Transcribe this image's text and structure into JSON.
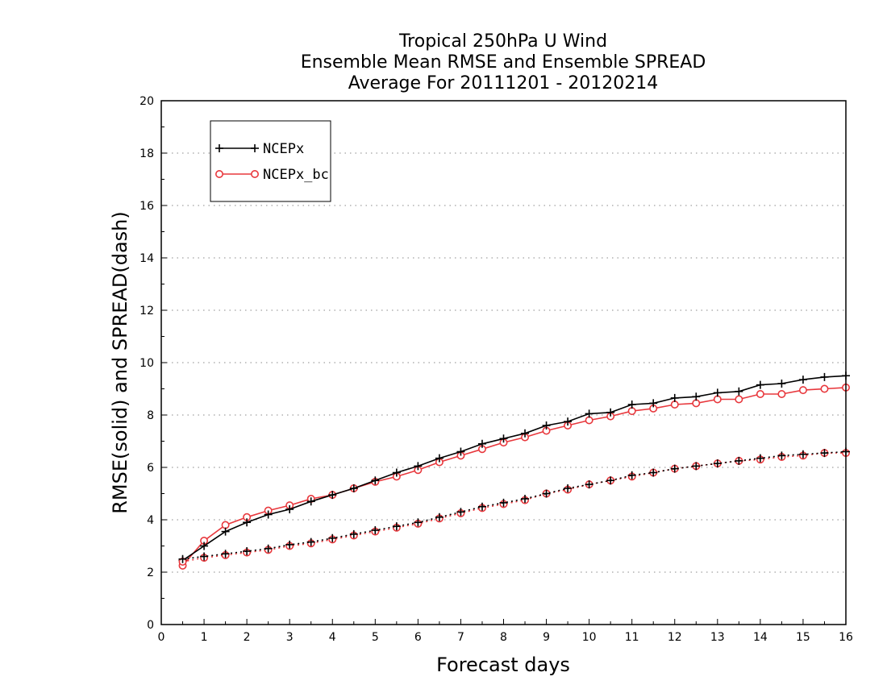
{
  "chart_data": {
    "type": "line",
    "title": [
      "Tropical 250hPa U Wind",
      "Ensemble Mean RMSE and Ensemble SPREAD",
      "Average For 20111201 - 20120214"
    ],
    "xlabel": "Forecast days",
    "ylabel": "RMSE(solid) and SPREAD(dash)",
    "xlim": [
      0,
      16
    ],
    "ylim": [
      0,
      20
    ],
    "xticks": [
      "0",
      "1",
      "2",
      "3",
      "4",
      "5",
      "6",
      "7",
      "8",
      "9",
      "10",
      "11",
      "12",
      "13",
      "14",
      "15",
      "16"
    ],
    "yticks": [
      "0",
      "2",
      "4",
      "6",
      "8",
      "10",
      "12",
      "14",
      "16",
      "18",
      "20"
    ],
    "grid": "horizontal dotted",
    "legend_position": "top-left",
    "x": [
      0.5,
      1,
      1.5,
      2,
      2.5,
      3,
      3.5,
      4,
      4.5,
      5,
      5.5,
      6,
      6.5,
      7,
      7.5,
      8,
      8.5,
      9,
      9.5,
      10,
      10.5,
      11,
      11.5,
      12,
      12.5,
      13,
      13.5,
      14,
      14.5,
      15,
      15.5,
      16
    ],
    "series": [
      {
        "name": "NCEPx",
        "style": "solid",
        "marker": "plus",
        "color": "#000000",
        "values": [
          2.45,
          3.0,
          3.55,
          3.9,
          4.2,
          4.4,
          4.7,
          4.95,
          5.2,
          5.5,
          5.8,
          6.05,
          6.35,
          6.6,
          6.9,
          7.1,
          7.3,
          7.6,
          7.75,
          8.05,
          8.1,
          8.4,
          8.45,
          8.65,
          8.7,
          8.85,
          8.9,
          9.15,
          9.2,
          9.35,
          9.45,
          9.5
        ]
      },
      {
        "name": "NCEPx_bc",
        "style": "solid",
        "marker": "circle",
        "color": "#e8383d",
        "values": [
          2.25,
          3.2,
          3.8,
          4.1,
          4.35,
          4.55,
          4.8,
          4.95,
          5.2,
          5.45,
          5.65,
          5.9,
          6.2,
          6.45,
          6.7,
          6.95,
          7.15,
          7.4,
          7.6,
          7.8,
          7.95,
          8.15,
          8.25,
          8.4,
          8.45,
          8.6,
          8.6,
          8.8,
          8.8,
          8.95,
          9.0,
          9.05
        ]
      },
      {
        "name": "NCEPx",
        "style": "dotted",
        "marker": "plus",
        "color": "#000000",
        "values": [
          2.5,
          2.6,
          2.7,
          2.8,
          2.9,
          3.05,
          3.15,
          3.3,
          3.45,
          3.6,
          3.75,
          3.9,
          4.1,
          4.3,
          4.5,
          4.65,
          4.8,
          5.0,
          5.2,
          5.35,
          5.5,
          5.7,
          5.8,
          5.95,
          6.05,
          6.15,
          6.25,
          6.35,
          6.45,
          6.5,
          6.55,
          6.6
        ]
      },
      {
        "name": "NCEPx_bc",
        "style": "dotted",
        "marker": "circle",
        "color": "#e8383d",
        "values": [
          2.4,
          2.55,
          2.65,
          2.75,
          2.85,
          3.0,
          3.1,
          3.25,
          3.4,
          3.55,
          3.7,
          3.85,
          4.05,
          4.25,
          4.45,
          4.6,
          4.75,
          5.0,
          5.15,
          5.35,
          5.5,
          5.65,
          5.8,
          5.95,
          6.05,
          6.15,
          6.25,
          6.3,
          6.4,
          6.45,
          6.55,
          6.55
        ]
      }
    ],
    "legend": [
      {
        "label": "NCEPx",
        "marker": "plus",
        "color": "#000000"
      },
      {
        "label": "NCEPx_bc",
        "marker": "circle",
        "color": "#e8383d"
      }
    ]
  }
}
